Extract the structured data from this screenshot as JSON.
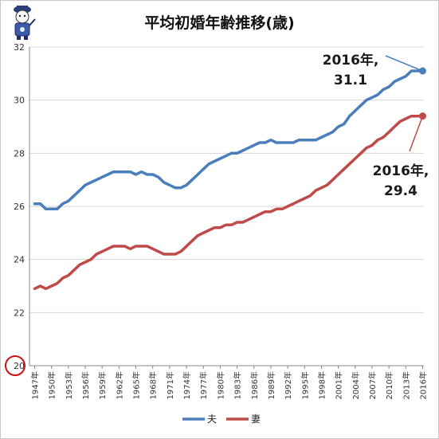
{
  "title": "平均初婚年齢推移(歳)",
  "mascot": {
    "icon": "mascot-icon"
  },
  "chart_data": {
    "type": "line",
    "title": "平均初婚年齢推移(歳)",
    "xlabel": "",
    "ylabel": "",
    "ylim": [
      20,
      32
    ],
    "yticks": [
      20,
      22,
      24,
      26,
      28,
      30,
      32
    ],
    "grid": true,
    "legend_position": "bottom",
    "years": [
      1947,
      1948,
      1949,
      1950,
      1951,
      1952,
      1953,
      1954,
      1955,
      1956,
      1957,
      1958,
      1959,
      1960,
      1961,
      1962,
      1963,
      1964,
      1965,
      1966,
      1967,
      1968,
      1969,
      1970,
      1971,
      1972,
      1973,
      1974,
      1975,
      1976,
      1977,
      1978,
      1979,
      1980,
      1981,
      1982,
      1983,
      1984,
      1985,
      1986,
      1987,
      1988,
      1989,
      1990,
      1991,
      1992,
      1993,
      1994,
      1995,
      1996,
      1997,
      1998,
      1999,
      2000,
      2001,
      2002,
      2003,
      2004,
      2005,
      2006,
      2007,
      2008,
      2009,
      2010,
      2011,
      2012,
      2013,
      2014,
      2015,
      2016
    ],
    "x_tick_labels": [
      "1947年",
      "1950年",
      "1953年",
      "1956年",
      "1959年",
      "1962年",
      "1965年",
      "1968年",
      "1971年",
      "1974年",
      "1977年",
      "1980年",
      "1983年",
      "1986年",
      "1989年",
      "1992年",
      "1995年",
      "1998年",
      "2001年",
      "2004年",
      "2007年",
      "2010年",
      "2013年",
      "2016年"
    ],
    "series": [
      {
        "name": "夫",
        "color": "#4a7ebb",
        "values": [
          26.1,
          26.1,
          25.9,
          25.9,
          25.9,
          26.1,
          26.2,
          26.4,
          26.6,
          26.8,
          26.9,
          27.0,
          27.1,
          27.2,
          27.3,
          27.3,
          27.3,
          27.3,
          27.2,
          27.3,
          27.2,
          27.2,
          27.1,
          26.9,
          26.8,
          26.7,
          26.7,
          26.8,
          27.0,
          27.2,
          27.4,
          27.6,
          27.7,
          27.8,
          27.9,
          28.0,
          28.0,
          28.1,
          28.2,
          28.3,
          28.4,
          28.4,
          28.5,
          28.4,
          28.4,
          28.4,
          28.4,
          28.5,
          28.5,
          28.5,
          28.5,
          28.6,
          28.7,
          28.8,
          29.0,
          29.1,
          29.4,
          29.6,
          29.8,
          30.0,
          30.1,
          30.2,
          30.4,
          30.5,
          30.7,
          30.8,
          30.9,
          31.1,
          31.1,
          31.1
        ]
      },
      {
        "name": "妻",
        "color": "#be4b48",
        "values": [
          22.9,
          23.0,
          22.9,
          23.0,
          23.1,
          23.3,
          23.4,
          23.6,
          23.8,
          23.9,
          24.0,
          24.2,
          24.3,
          24.4,
          24.5,
          24.5,
          24.5,
          24.4,
          24.5,
          24.5,
          24.5,
          24.4,
          24.3,
          24.2,
          24.2,
          24.2,
          24.3,
          24.5,
          24.7,
          24.9,
          25.0,
          25.1,
          25.2,
          25.2,
          25.3,
          25.3,
          25.4,
          25.4,
          25.5,
          25.6,
          25.7,
          25.8,
          25.8,
          25.9,
          25.9,
          26.0,
          26.1,
          26.2,
          26.3,
          26.4,
          26.6,
          26.7,
          26.8,
          27.0,
          27.2,
          27.4,
          27.6,
          27.8,
          28.0,
          28.2,
          28.3,
          28.5,
          28.6,
          28.8,
          29.0,
          29.2,
          29.3,
          29.4,
          29.4,
          29.4
        ]
      }
    ],
    "annotations": [
      {
        "series": "夫",
        "line1": "2016年,",
        "line2": "31.1"
      },
      {
        "series": "妻",
        "line1": "2016年,",
        "line2": "29.4"
      }
    ]
  }
}
